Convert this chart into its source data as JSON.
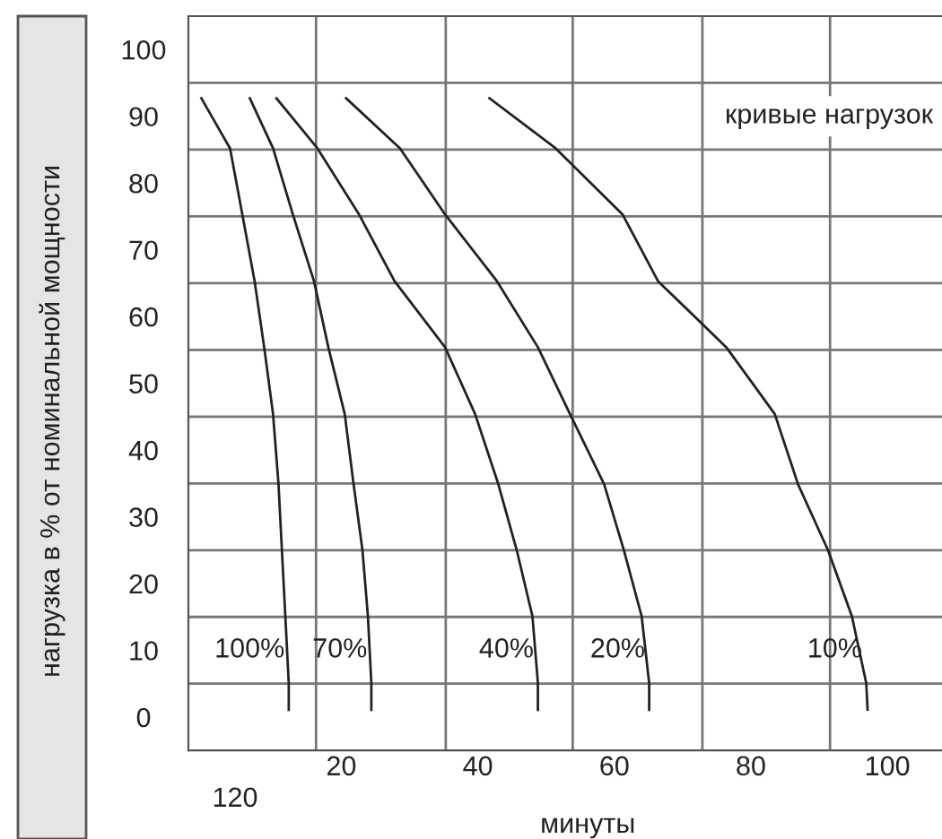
{
  "chart_data": {
    "type": "line",
    "ylabel": "нагрузка в % от номинальной мощности",
    "xlabel": "минуты",
    "annotations": [
      "кривые нагрузок",
      "120"
    ],
    "xlim": [
      -2.4,
      108
    ],
    "xticks": [
      {
        "value": 16.3,
        "label": null
      },
      {
        "value": 35.3,
        "label": null
      },
      {
        "value": 53.9,
        "label": null
      },
      {
        "value": 72.9,
        "label": null
      },
      {
        "value": 91.6,
        "label": null
      },
      20,
      40,
      60,
      80,
      100
    ],
    "ylim": [
      -5,
      105
    ],
    "yticks": [
      {
        "value": 5,
        "label": null
      },
      {
        "value": 15,
        "label": null
      },
      {
        "value": 25,
        "label": null
      },
      {
        "value": 35,
        "label": null
      },
      {
        "value": 45,
        "label": null
      },
      {
        "value": 55,
        "label": null
      },
      {
        "value": 65,
        "label": null
      },
      {
        "value": 75,
        "label": null
      },
      {
        "value": 85,
        "label": null
      },
      {
        "value": 95,
        "label": null
      },
      0,
      10,
      20,
      30,
      40,
      50,
      60,
      70,
      80,
      90,
      100
    ],
    "grid": true,
    "legend": false,
    "marker": "none",
    "line_style": "solid",
    "series": [
      {
        "name": "100%",
        "color": "#222222",
        "x": [
          -0.5,
          3.7,
          5.5,
          7.3,
          8.7,
          10,
          10.8,
          11.3,
          11.8,
          12.3,
          12.3
        ],
        "values": [
          92.7,
          85.2,
          75.3,
          65.3,
          55.4,
          45.4,
          34.9,
          25,
          15.1,
          5.1,
          1.1
        ]
      },
      {
        "name": "70%",
        "color": "#222222",
        "x": [
          6.6,
          10,
          12.9,
          16,
          18.1,
          20.5,
          21.8,
          23.1,
          23.9,
          24.4,
          24.4
        ],
        "values": [
          92.7,
          85.2,
          75.3,
          65.3,
          55.4,
          45.4,
          34.9,
          25,
          15.1,
          5.1,
          1.1
        ]
      },
      {
        "name": "40%",
        "color": "#222222",
        "x": [
          10.5,
          16.5,
          22.6,
          27.8,
          35.2,
          39.6,
          43,
          45.7,
          48,
          48.8,
          48.8
        ],
        "values": [
          92.7,
          85.2,
          75.3,
          65.3,
          55.4,
          45.4,
          34.9,
          25,
          15.1,
          5.1,
          1.1
        ]
      },
      {
        "name": "20%",
        "color": "#222222",
        "x": [
          20.7,
          28.6,
          35.2,
          42.8,
          48.8,
          53.5,
          58.5,
          61.4,
          64,
          65.1,
          65.1
        ],
        "values": [
          92.7,
          85.2,
          75.3,
          65.3,
          55.4,
          45.4,
          34.9,
          25,
          15.1,
          5.1,
          1.1
        ]
      },
      {
        "name": "10%",
        "color": "#222222",
        "x": [
          41.7,
          51.4,
          61.2,
          66.4,
          76.4,
          83.5,
          86.9,
          91.3,
          94.8,
          96.9,
          97.1
        ],
        "values": [
          92.7,
          85.2,
          75.3,
          65.3,
          55.4,
          45.4,
          34.9,
          25,
          15.1,
          5.1,
          1.1
        ]
      }
    ]
  }
}
